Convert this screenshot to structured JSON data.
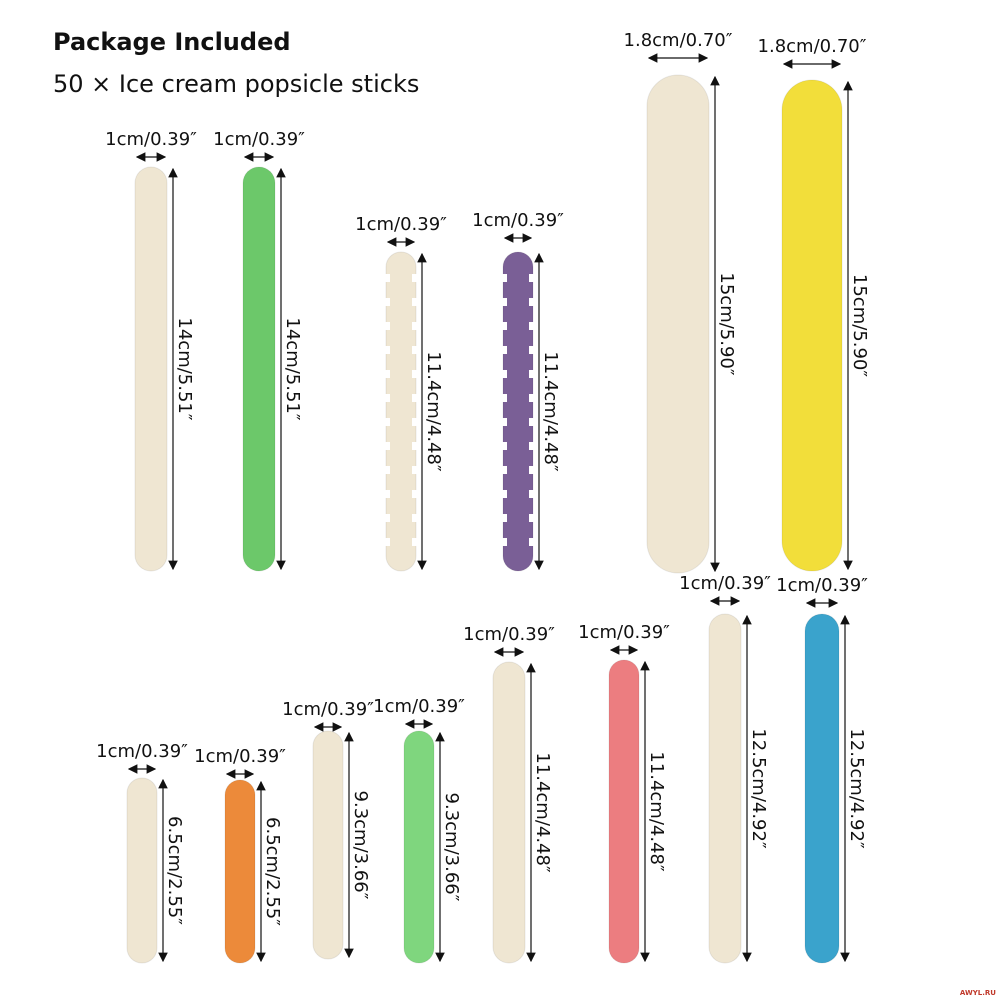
{
  "header": {
    "title": "Package Included",
    "subtitle": "50 × Ice cream popsicle sticks"
  },
  "sticks": [
    {
      "width_label": "1cm/0.39″",
      "length_label": "14cm/5.51″",
      "color": "#efe6d2",
      "shape": "plain"
    },
    {
      "width_label": "1cm/0.39″",
      "length_label": "14cm/5.51″",
      "color": "#6cc86a",
      "shape": "plain"
    },
    {
      "width_label": "1cm/0.39″",
      "length_label": "11.4cm/4.48″",
      "color": "#efe6d2",
      "shape": "notched"
    },
    {
      "width_label": "1cm/0.39″",
      "length_label": "11.4cm/4.48″",
      "color": "#7a5f96",
      "shape": "notched"
    },
    {
      "width_label": "1.8cm/0.70″",
      "length_label": "15cm/5.90″",
      "color": "#efe6d2",
      "shape": "plain"
    },
    {
      "width_label": "1.8cm/0.70″",
      "length_label": "15cm/5.90″",
      "color": "#f2de3a",
      "shape": "plain"
    },
    {
      "width_label": "1cm/0.39″",
      "length_label": "6.5cm/2.55″",
      "color": "#efe6d2",
      "shape": "plain"
    },
    {
      "width_label": "1cm/0.39″",
      "length_label": "6.5cm/2.55″",
      "color": "#ec8a3a",
      "shape": "plain"
    },
    {
      "width_label": "1cm/0.39″",
      "length_label": "9.3cm/3.66″",
      "color": "#efe6d2",
      "shape": "plain"
    },
    {
      "width_label": "1cm/0.39″",
      "length_label": "9.3cm/3.66″",
      "color": "#7fd67e",
      "shape": "plain"
    },
    {
      "width_label": "1cm/0.39″",
      "length_label": "11.4cm/4.48″",
      "color": "#efe6d2",
      "shape": "plain"
    },
    {
      "width_label": "1cm/0.39″",
      "length_label": "11.4cm/4.48″",
      "color": "#ec7d80",
      "shape": "plain"
    },
    {
      "width_label": "1cm/0.39″",
      "length_label": "12.5cm/4.92″",
      "color": "#efe6d2",
      "shape": "plain"
    },
    {
      "width_label": "1cm/0.39″",
      "length_label": "12.5cm/4.92″",
      "color": "#3aa3cc",
      "shape": "plain"
    }
  ],
  "watermark": "AWYL.RU"
}
